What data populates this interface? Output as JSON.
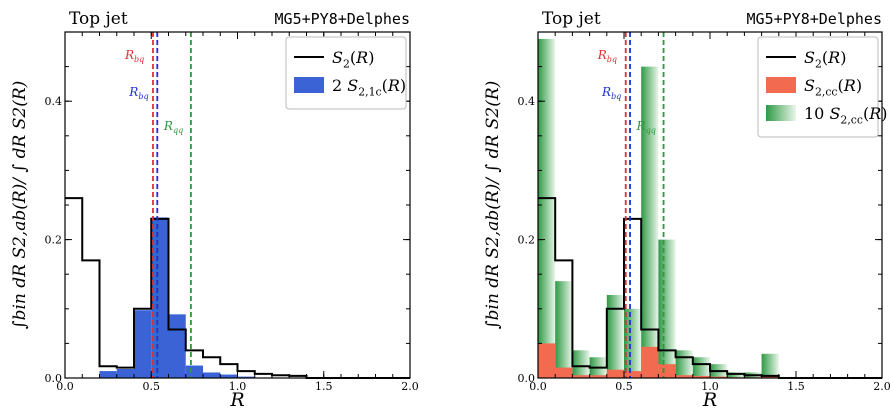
{
  "chart_data": [
    {
      "type": "bar",
      "corner_left": "Top jet",
      "corner_right": "MG5+PY8+Delphes",
      "xlabel": "R",
      "ylabel": "∫bin dR S2,ab(R)/ ∫ dR S2(R)",
      "xlim": [
        0.0,
        2.0
      ],
      "ylim": [
        0.0,
        0.5
      ],
      "xticks": [
        "0.0",
        "0.5",
        "1.0",
        "1.5",
        "2.0"
      ],
      "yticks": [
        "0.0",
        "0.2",
        "0.4"
      ],
      "bin_edges": [
        0.0,
        0.1,
        0.2,
        0.3,
        0.4,
        0.5,
        0.6,
        0.7,
        0.8,
        0.9,
        1.0,
        1.1,
        1.2,
        1.3,
        1.4,
        1.5,
        1.6,
        1.7,
        1.8,
        1.9,
        2.0
      ],
      "series": [
        {
          "name": "S2(R)",
          "style": "step",
          "color": "#000000",
          "values": [
            0.26,
            0.17,
            0.017,
            0.015,
            0.1,
            0.23,
            0.07,
            0.04,
            0.03,
            0.02,
            0.01,
            0.006,
            0.004,
            0.003,
            0,
            0,
            0,
            0,
            0,
            0
          ]
        },
        {
          "name": "2 S2,1c(R)",
          "style": "bar",
          "color": "#3b63d6",
          "values": [
            0,
            0,
            0.01,
            0.013,
            0.098,
            0.232,
            0.092,
            0.018,
            0.008,
            0.005,
            0.002,
            0,
            0,
            0,
            0,
            0,
            0,
            0,
            0,
            0
          ]
        }
      ],
      "vlines": [
        {
          "label": "Rbq",
          "x": 0.51,
          "color": "#e03030"
        },
        {
          "label": "Rbq",
          "x": 0.535,
          "color": "#2030d0"
        },
        {
          "label": "Rqq",
          "x": 0.73,
          "color": "#2a9a3a"
        }
      ],
      "legend": "top-right",
      "grid": false
    },
    {
      "type": "bar",
      "corner_left": "Top jet",
      "corner_right": "MG5+PY8+Delphes",
      "xlabel": "R",
      "ylabel": "∫bin dR S2,ab(R)/ ∫ dR S2(R)",
      "xlim": [
        0.0,
        2.0
      ],
      "ylim": [
        0.0,
        0.5
      ],
      "xticks": [
        "0.0",
        "0.5",
        "1.0",
        "1.5",
        "2.0"
      ],
      "yticks": [
        "0.0",
        "0.2",
        "0.4"
      ],
      "bin_edges": [
        0.0,
        0.1,
        0.2,
        0.3,
        0.4,
        0.5,
        0.6,
        0.7,
        0.8,
        0.9,
        1.0,
        1.1,
        1.2,
        1.3,
        1.4,
        1.5,
        1.6,
        1.7,
        1.8,
        1.9,
        2.0
      ],
      "series": [
        {
          "name": "S2(R)",
          "style": "step",
          "color": "#000000",
          "values": [
            0.26,
            0.17,
            0.017,
            0.015,
            0.1,
            0.23,
            0.07,
            0.04,
            0.03,
            0.02,
            0.01,
            0.006,
            0.004,
            0.003,
            0,
            0,
            0,
            0,
            0,
            0
          ]
        },
        {
          "name": "S2,cc(R)",
          "style": "bar",
          "color": "#f26a4f",
          "values": [
            0.05,
            0.015,
            0.004,
            0.004,
            0.012,
            0.01,
            0.045,
            0.02,
            0.004,
            0.003,
            0.002,
            0.001,
            0.001,
            0.004,
            0,
            0,
            0,
            0,
            0,
            0
          ]
        },
        {
          "name": "10 S2,cc(R)",
          "style": "gradient-bar",
          "color": "#2e9a45",
          "values": [
            0.49,
            0.14,
            0.04,
            0.03,
            0.12,
            0.1,
            0.45,
            0.2,
            0.04,
            0.03,
            0.02,
            0.008,
            0.008,
            0.035,
            0,
            0,
            0,
            0,
            0,
            0
          ]
        }
      ],
      "vlines": [
        {
          "label": "Rbq",
          "x": 0.51,
          "color": "#e03030"
        },
        {
          "label": "Rbq",
          "x": 0.535,
          "color": "#2030d0"
        },
        {
          "label": "Rqq",
          "x": 0.73,
          "color": "#2a9a3a"
        }
      ],
      "legend": "top-right",
      "grid": false
    }
  ]
}
